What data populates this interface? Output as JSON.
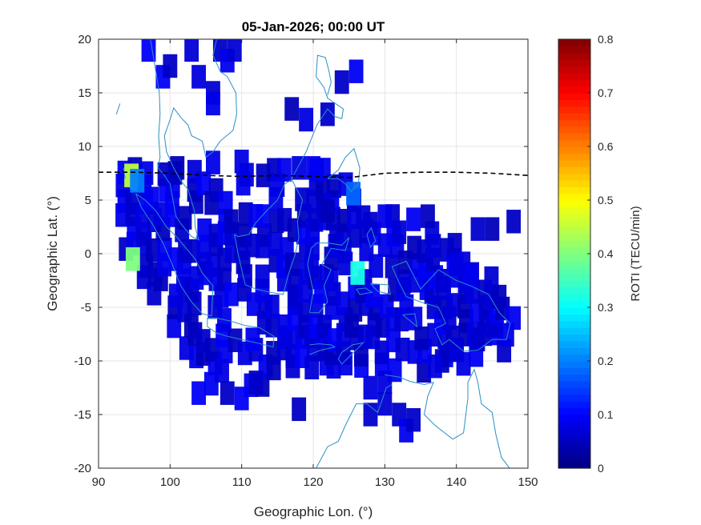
{
  "chart_data": {
    "type": "heatmap",
    "title": "05-Jan-2026; 00:00 UT",
    "xlabel": "Geographic Lon. (°)",
    "ylabel": "Geographic Lat. (°)",
    "xlim": [
      90,
      150
    ],
    "ylim": [
      -20,
      20
    ],
    "xticks": [
      "90",
      "100",
      "110",
      "120",
      "130",
      "140",
      "150"
    ],
    "yticks": [
      "20",
      "15",
      "10",
      "5",
      "0",
      "-5",
      "-10",
      "-15",
      "-20"
    ],
    "grid": true,
    "colorbar": {
      "label": "ROTI (TECU/min)",
      "range": [
        0,
        0.8
      ],
      "ticks": [
        "0.8",
        "0.7",
        "0.6",
        "0.5",
        "0.4",
        "0.3",
        "0.2",
        "0.1",
        "0"
      ],
      "colormap": "jet"
    },
    "magnetic_equator": [
      [
        90,
        7.6
      ],
      [
        95,
        7.6
      ],
      [
        100,
        7.5
      ],
      [
        105,
        7.3
      ],
      [
        110,
        7.2
      ],
      [
        115,
        7.3
      ],
      [
        120,
        7.2
      ],
      [
        125,
        7.1
      ],
      [
        130,
        7.5
      ],
      [
        135,
        7.6
      ],
      [
        140,
        7.6
      ],
      [
        145,
        7.5
      ],
      [
        150,
        7.3
      ]
    ],
    "high_roti_points": [
      [
        94.6,
        7.3,
        0.45
      ],
      [
        94.8,
        -0.5,
        0.4
      ],
      [
        126.2,
        -1.8,
        0.32
      ],
      [
        125.6,
        5.6,
        0.18
      ],
      [
        95.4,
        6.8,
        0.2
      ]
    ],
    "background_roti": 0.07
  },
  "colors": {
    "background": "#ffffff",
    "coastline": "#2a8fc8",
    "equator_line": "#000000",
    "grid": "#e6e6e6"
  }
}
